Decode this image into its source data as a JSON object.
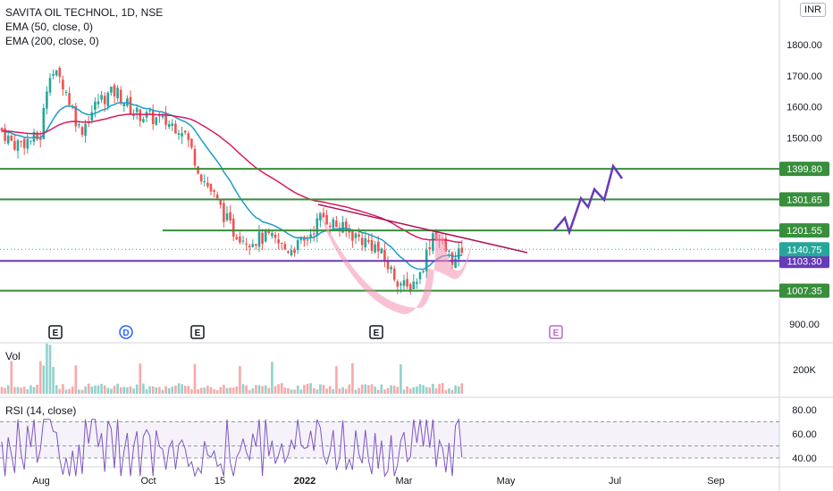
{
  "header": {
    "title": "SAVITA OIL TECHNOL, 1D, NSE",
    "ema1": "EMA (50, close, 0)",
    "ema2": "EMA (200, close, 0)",
    "currency": "INR"
  },
  "volume_pane": {
    "label": "Vol",
    "axis_label": "200K"
  },
  "rsi_pane": {
    "label": "RSI (14, close)"
  },
  "chart_data": {
    "type": "candlestick",
    "price_axis_ticks": [
      "1800.00",
      "1700.00",
      "1600.00",
      "1500.00",
      "900.00"
    ],
    "rsi_axis_ticks": [
      "80.00",
      "60.00",
      "40.00"
    ],
    "x_tick_labels": [
      "Aug",
      "Oct",
      "15",
      "2022",
      "Mar",
      "May",
      "Jul",
      "Sep"
    ],
    "last_price": "1140.75",
    "horizontal_levels": [
      {
        "value": 1399.8,
        "label": "1399.80",
        "color": "#388e3c"
      },
      {
        "value": 1301.65,
        "label": "1301.65",
        "color": "#388e3c"
      },
      {
        "value": 1201.55,
        "label": "1201.55",
        "color": "#388e3c"
      },
      {
        "value": 1103.3,
        "label": "1103.30",
        "color": "#673ab7"
      },
      {
        "value": 1007.35,
        "label": "1007.35",
        "color": "#388e3c"
      }
    ],
    "event_markers": [
      "E",
      "D",
      "E",
      "E",
      "E"
    ],
    "colors": {
      "up": "#26a69a",
      "down": "#ef5350",
      "ema50": "#1a9ec8",
      "ema200": "#d81b60",
      "projection": "#673ab7",
      "trendline": "#ad1457",
      "pattern": "#f48fb1"
    },
    "rsi_band": [
      40,
      70
    ]
  }
}
